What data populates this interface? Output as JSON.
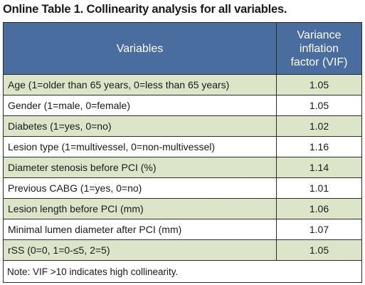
{
  "title": "Online Table 1. Collinearity analysis for all variables.",
  "table": {
    "headers": [
      "Variables",
      "Variance inflation factor (VIF)"
    ],
    "header_vif_lines": [
      "Variance",
      "inflation",
      "factor (VIF)"
    ],
    "rows": [
      {
        "variable": "Age (1=older than 65 years, 0=less than 65 years)",
        "vif": "1.05"
      },
      {
        "variable": "Gender (1=male, 0=female)",
        "vif": "1.05"
      },
      {
        "variable": "Diabetes (1=yes, 0=no)",
        "vif": "1.02"
      },
      {
        "variable": "Lesion type (1=multivessel, 0=non-multivessel)",
        "vif": "1.16"
      },
      {
        "variable": "Diameter stenosis before PCI (%)",
        "vif": "1.14"
      },
      {
        "variable": "Previous CABG (1=yes, 0=no)",
        "vif": "1.01"
      },
      {
        "variable": "Lesion length before PCI (mm)",
        "vif": "1.06"
      },
      {
        "variable": "Minimal lumen diameter after PCI (mm)",
        "vif": "1.07"
      },
      {
        "variable": "rSS (0=0, 1=0-≤5, 2=5)",
        "vif": "1.05"
      }
    ],
    "note": "Note: VIF >10 indicates high collinearity."
  },
  "colors": {
    "header_bg": "#4a6da0",
    "shaded_row_bg": "#dde5c9",
    "header_text": "#ffffff"
  }
}
